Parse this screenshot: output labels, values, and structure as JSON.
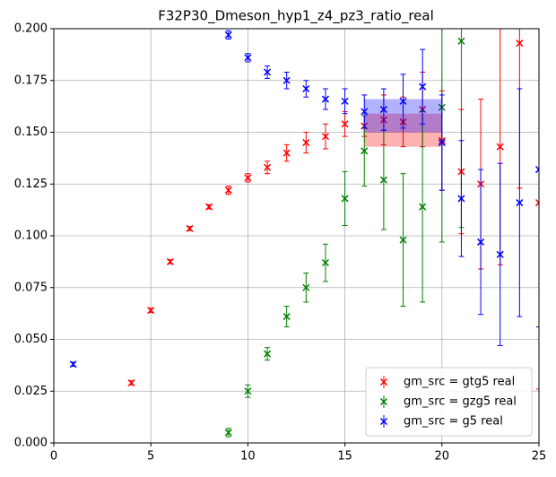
{
  "chart_data": {
    "type": "errorbar",
    "title": "F32P30_Dmeson_hyp1_z4_pz3_ratio_real",
    "xlim": [
      0,
      25
    ],
    "ylim": [
      0,
      0.2
    ],
    "xticks": [
      0,
      5,
      10,
      15,
      20,
      25
    ],
    "yticks": [
      {
        "value": 0,
        "label": "0.000"
      },
      {
        "value": 0.025,
        "label": "0.025"
      },
      {
        "value": 0.05,
        "label": "0.050"
      },
      {
        "value": 0.075,
        "label": "0.075"
      },
      {
        "value": 0.1,
        "label": "0.100"
      },
      {
        "value": 0.125,
        "label": "0.125"
      },
      {
        "value": 0.15,
        "label": "0.150"
      },
      {
        "value": 0.175,
        "label": "0.175"
      },
      {
        "value": 0.2,
        "label": "0.200"
      }
    ],
    "grid": true,
    "legend": "lower right",
    "series": [
      {
        "name": "gm_src = gtg5 real",
        "color": "#ff0000",
        "x": [
          4,
          5,
          6,
          7,
          8,
          9,
          10,
          11,
          12,
          13,
          14,
          15,
          16,
          17,
          18,
          19,
          20,
          21,
          22,
          23,
          24,
          25
        ],
        "values": [
          0.029,
          0.064,
          0.0875,
          0.1035,
          0.114,
          0.122,
          0.128,
          0.133,
          0.14,
          0.145,
          0.148,
          0.154,
          0.153,
          0.156,
          0.155,
          0.161,
          0.146,
          0.131,
          0.125,
          0.143,
          0.193,
          0.116
        ],
        "errors": [
          0.001,
          0.001,
          0.001,
          0.001,
          0.001,
          0.002,
          0.002,
          0.003,
          0.004,
          0.005,
          0.006,
          0.006,
          0.005,
          0.012,
          0.012,
          0.018,
          0.024,
          0.03,
          0.041,
          0.057,
          0.07,
          0.09
        ],
        "band": {
          "x": [
            16,
            20
          ],
          "low": 0.143,
          "high": 0.159
        }
      },
      {
        "name": "gm_src = gzg5 real",
        "color": "#008000",
        "x": [
          9,
          10,
          11,
          12,
          13,
          14,
          15,
          16,
          17,
          18,
          19,
          20,
          21
        ],
        "values": [
          0.005,
          0.025,
          0.043,
          0.061,
          0.075,
          0.087,
          0.118,
          0.141,
          0.127,
          0.098,
          0.114,
          0.162,
          0.194
        ],
        "errors": [
          0.002,
          0.003,
          0.003,
          0.005,
          0.007,
          0.009,
          0.013,
          0.017,
          0.024,
          0.032,
          0.046,
          0.065,
          0.09
        ]
      },
      {
        "name": "gm_src = g5 real",
        "color": "#0000ff",
        "x": [
          1,
          9,
          10,
          11,
          12,
          13,
          14,
          15,
          16,
          17,
          18,
          19,
          20,
          21,
          22,
          23,
          24,
          25
        ],
        "values": [
          0.038,
          0.197,
          0.186,
          0.179,
          0.175,
          0.171,
          0.166,
          0.165,
          0.16,
          0.161,
          0.165,
          0.172,
          0.145,
          0.118,
          0.097,
          0.091,
          0.116,
          0.132
        ],
        "errors": [
          0.001,
          0.002,
          0.002,
          0.003,
          0.004,
          0.004,
          0.005,
          0.006,
          0.008,
          0.01,
          0.013,
          0.018,
          0.023,
          0.028,
          0.035,
          0.044,
          0.055,
          0.076
        ],
        "band": {
          "x": [
            16,
            20
          ],
          "low": 0.15,
          "high": 0.166
        }
      }
    ]
  }
}
